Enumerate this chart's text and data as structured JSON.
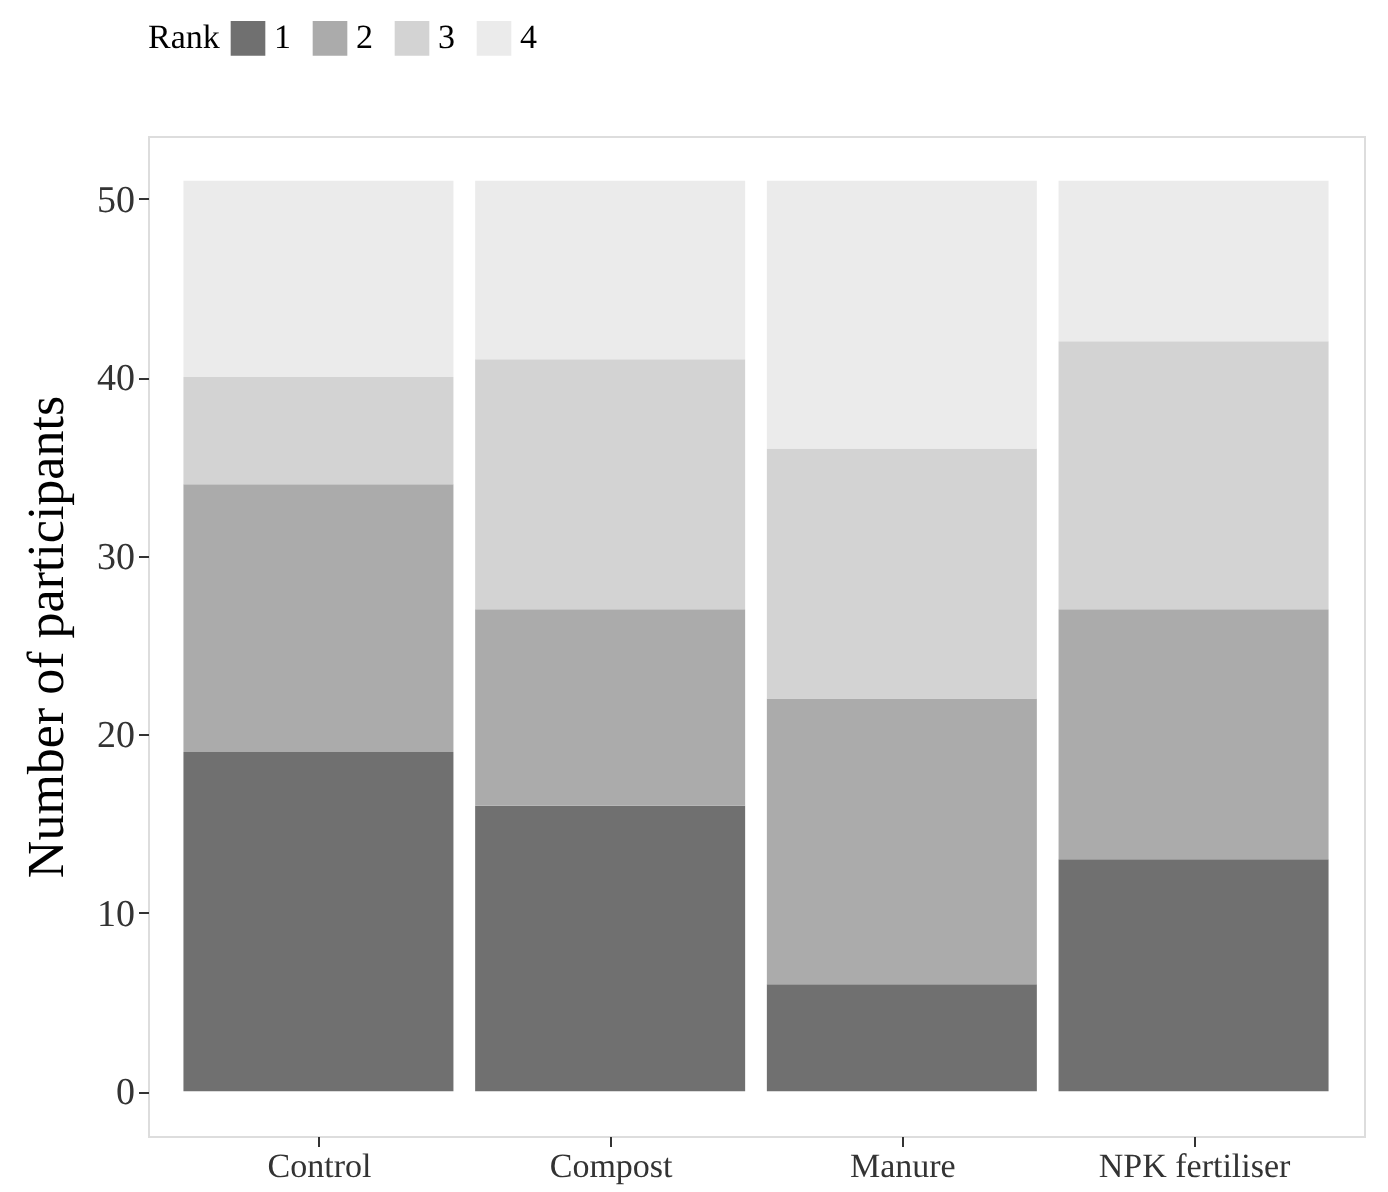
{
  "chart_data": {
    "type": "bar",
    "stacked": true,
    "ylabel": "Number of participants",
    "legend_title": "Rank",
    "legend": "top",
    "grid": false,
    "categories": [
      "Control",
      "Compost",
      "Manure",
      "NPK fertiliser"
    ],
    "ylim": [
      -2.5,
      53.5
    ],
    "yticks": [
      0,
      10,
      20,
      30,
      40,
      50
    ],
    "series": [
      {
        "name": "1",
        "color": "#707070",
        "values": [
          19,
          16,
          6,
          13
        ]
      },
      {
        "name": "2",
        "color": "#ababab",
        "values": [
          15,
          11,
          16,
          14
        ]
      },
      {
        "name": "3",
        "color": "#d3d3d3",
        "values": [
          6,
          14,
          14,
          15
        ]
      },
      {
        "name": "4",
        "color": "#ebebeb",
        "values": [
          11,
          10,
          15,
          9
        ]
      }
    ]
  }
}
